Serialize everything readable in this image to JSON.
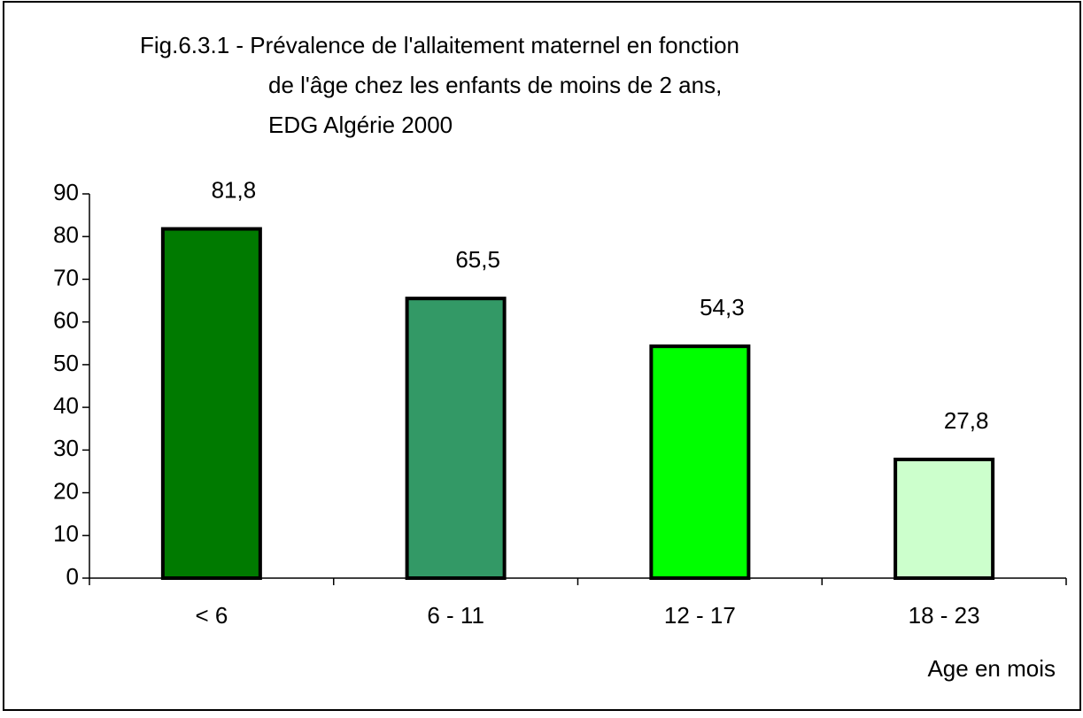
{
  "chart_data": {
    "type": "bar",
    "title": [
      "Fig.6.3.1 - Prévalence de l'allaitement maternel en fonction",
      "de l'âge chez les enfants de moins de 2 ans,",
      "EDG Algérie 2000"
    ],
    "x_label": "Age en mois",
    "categories": [
      "< 6",
      "6 - 11",
      "12 - 17",
      "18 - 23"
    ],
    "values": [
      81.8,
      65.5,
      54.3,
      27.8
    ],
    "value_labels": [
      "81,8",
      "65,5",
      "54,3",
      "27,8"
    ],
    "colors": [
      "#007a00",
      "#339966",
      "#00ff00",
      "#ccffcc"
    ],
    "ylim": [
      0,
      90
    ],
    "yticks": [
      0,
      10,
      20,
      30,
      40,
      50,
      60,
      70,
      80,
      90
    ],
    "grid": false
  }
}
